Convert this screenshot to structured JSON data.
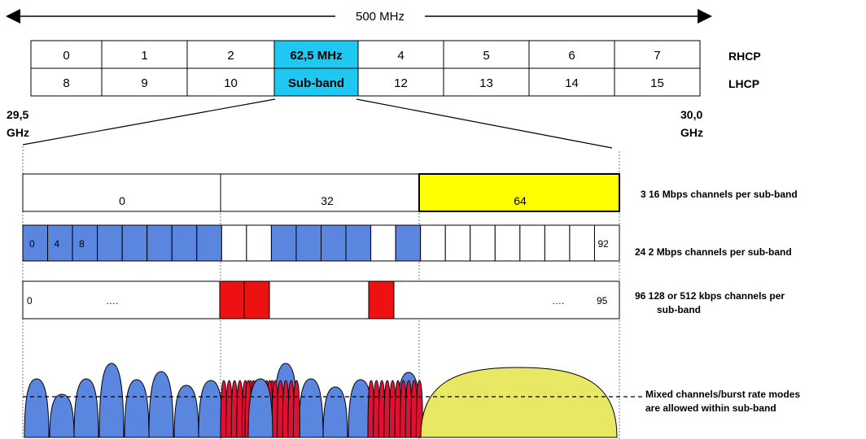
{
  "span_label": "500 MHz",
  "subband_grid": {
    "row1": [
      "0",
      "1",
      "2",
      "62,5 MHz",
      "4",
      "5",
      "6",
      "7"
    ],
    "row2": [
      "8",
      "9",
      "10",
      "Sub-band",
      "12",
      "13",
      "14",
      "15"
    ],
    "row1_pol": "RHCP",
    "row2_pol": "LHCP",
    "highlight_color": "#1ec8f0"
  },
  "freq_left": [
    "29,5",
    "GHz"
  ],
  "freq_right": [
    "30,0",
    "GHz"
  ],
  "row_16mbps": {
    "labels": [
      "0",
      "32",
      "64"
    ],
    "note": "3  16 Mbps channels per sub-band",
    "highlight_color": "#ffff00"
  },
  "row_2mbps": {
    "labels": [
      "0",
      "4",
      "8",
      "92"
    ],
    "note": "24   2 Mbps channels per sub-band",
    "fill_pattern": [
      1,
      1,
      1,
      1,
      1,
      1,
      1,
      1,
      0,
      0,
      1,
      1,
      1,
      1,
      0,
      1,
      0,
      0,
      0,
      0,
      0,
      0,
      0,
      0
    ],
    "fill_color": "#5b86e0"
  },
  "row_kbps": {
    "labels": [
      "0",
      "….",
      "….",
      "95"
    ],
    "note_line1": "96   128 or 512 kbps channels per",
    "note_line2": "sub-band",
    "fill_color": "#ee1111"
  },
  "spectrum": {
    "note_line1": "Mixed channels/burst rate modes",
    "note_line2": "are allowed within sub-band",
    "blue_color": "#5b86e0",
    "red_color": "#dd1133",
    "yellow_color": "#e8e864"
  }
}
